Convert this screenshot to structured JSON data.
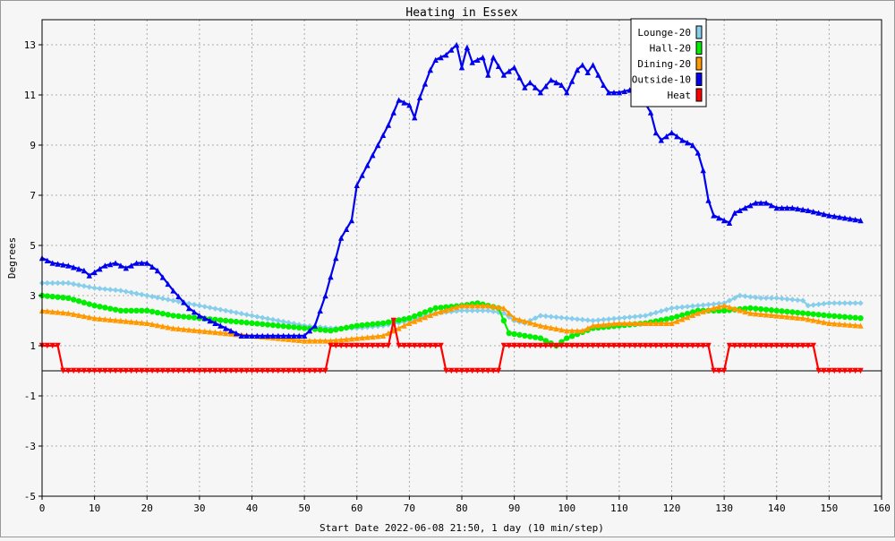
{
  "chart_data": {
    "type": "line",
    "title": "Heating in Essex",
    "xlabel": "Start Date 2022-06-08 21:50, 1 day (10 min/step)",
    "ylabel": "Degrees",
    "xlim": [
      0,
      160
    ],
    "ylim": [
      -5,
      14
    ],
    "x_ticks": [
      0,
      10,
      20,
      30,
      40,
      50,
      60,
      70,
      80,
      90,
      100,
      110,
      120,
      130,
      140,
      150,
      160
    ],
    "y_ticks": [
      -5,
      -3,
      -1,
      1,
      3,
      5,
      7,
      9,
      11,
      13
    ],
    "grid": true,
    "legend_position": "top-right",
    "series": [
      {
        "name": "Lounge-20",
        "color": "#87ceeb",
        "marker": "diamond",
        "points": [
          [
            0,
            3.5
          ],
          [
            5,
            3.5
          ],
          [
            10,
            3.3
          ],
          [
            15,
            3.2
          ],
          [
            20,
            3.0
          ],
          [
            25,
            2.8
          ],
          [
            30,
            2.6
          ],
          [
            35,
            2.4
          ],
          [
            40,
            2.2
          ],
          [
            45,
            2.0
          ],
          [
            50,
            1.8
          ],
          [
            55,
            1.7
          ],
          [
            60,
            1.7
          ],
          [
            65,
            1.8
          ],
          [
            70,
            2.0
          ],
          [
            75,
            2.3
          ],
          [
            80,
            2.4
          ],
          [
            85,
            2.4
          ],
          [
            88,
            2.3
          ],
          [
            90,
            2.0
          ],
          [
            92,
            1.9
          ],
          [
            95,
            2.2
          ],
          [
            100,
            2.1
          ],
          [
            105,
            2.0
          ],
          [
            110,
            2.1
          ],
          [
            115,
            2.2
          ],
          [
            120,
            2.5
          ],
          [
            125,
            2.6
          ],
          [
            130,
            2.7
          ],
          [
            133,
            3.0
          ],
          [
            137,
            2.9
          ],
          [
            140,
            2.9
          ],
          [
            145,
            2.8
          ],
          [
            146,
            2.6
          ],
          [
            150,
            2.7
          ],
          [
            156,
            2.7
          ]
        ]
      },
      {
        "name": "Hall-20",
        "color": "#00ee00",
        "marker": "circle",
        "points": [
          [
            0,
            3.0
          ],
          [
            5,
            2.9
          ],
          [
            10,
            2.6
          ],
          [
            15,
            2.4
          ],
          [
            20,
            2.4
          ],
          [
            25,
            2.2
          ],
          [
            30,
            2.1
          ],
          [
            35,
            2.0
          ],
          [
            40,
            1.9
          ],
          [
            45,
            1.8
          ],
          [
            50,
            1.7
          ],
          [
            55,
            1.6
          ],
          [
            60,
            1.8
          ],
          [
            65,
            1.9
          ],
          [
            70,
            2.1
          ],
          [
            75,
            2.5
          ],
          [
            80,
            2.6
          ],
          [
            83,
            2.7
          ],
          [
            87,
            2.5
          ],
          [
            89,
            1.5
          ],
          [
            92,
            1.4
          ],
          [
            95,
            1.3
          ],
          [
            98,
            1.0
          ],
          [
            100,
            1.3
          ],
          [
            105,
            1.7
          ],
          [
            110,
            1.8
          ],
          [
            115,
            1.9
          ],
          [
            120,
            2.1
          ],
          [
            125,
            2.4
          ],
          [
            130,
            2.4
          ],
          [
            135,
            2.5
          ],
          [
            140,
            2.4
          ],
          [
            145,
            2.3
          ],
          [
            150,
            2.2
          ],
          [
            156,
            2.1
          ]
        ]
      },
      {
        "name": "Dining-20",
        "color": "#ff9900",
        "marker": "triangle-up",
        "points": [
          [
            0,
            2.4
          ],
          [
            5,
            2.3
          ],
          [
            10,
            2.1
          ],
          [
            15,
            2.0
          ],
          [
            20,
            1.9
          ],
          [
            25,
            1.7
          ],
          [
            30,
            1.6
          ],
          [
            35,
            1.5
          ],
          [
            40,
            1.4
          ],
          [
            45,
            1.3
          ],
          [
            50,
            1.2
          ],
          [
            55,
            1.2
          ],
          [
            60,
            1.3
          ],
          [
            65,
            1.4
          ],
          [
            70,
            1.9
          ],
          [
            75,
            2.3
          ],
          [
            80,
            2.6
          ],
          [
            85,
            2.6
          ],
          [
            88,
            2.5
          ],
          [
            90,
            2.1
          ],
          [
            95,
            1.8
          ],
          [
            100,
            1.6
          ],
          [
            103,
            1.6
          ],
          [
            105,
            1.8
          ],
          [
            110,
            1.9
          ],
          [
            120,
            1.9
          ],
          [
            125,
            2.3
          ],
          [
            128,
            2.5
          ],
          [
            130,
            2.6
          ],
          [
            135,
            2.3
          ],
          [
            140,
            2.2
          ],
          [
            145,
            2.1
          ],
          [
            150,
            1.9
          ],
          [
            156,
            1.8
          ]
        ]
      },
      {
        "name": "Outside-10",
        "color": "#0000ee",
        "marker": "triangle-up",
        "points": [
          [
            0,
            4.5
          ],
          [
            2,
            4.3
          ],
          [
            5,
            4.2
          ],
          [
            8,
            4.0
          ],
          [
            9,
            3.8
          ],
          [
            12,
            4.2
          ],
          [
            14,
            4.3
          ],
          [
            16,
            4.1
          ],
          [
            18,
            4.3
          ],
          [
            20,
            4.3
          ],
          [
            22,
            4.0
          ],
          [
            25,
            3.2
          ],
          [
            28,
            2.5
          ],
          [
            30,
            2.2
          ],
          [
            33,
            1.9
          ],
          [
            36,
            1.6
          ],
          [
            38,
            1.4
          ],
          [
            42,
            1.4
          ],
          [
            46,
            1.4
          ],
          [
            50,
            1.4
          ],
          [
            52,
            1.8
          ],
          [
            54,
            3.0
          ],
          [
            56,
            4.5
          ],
          [
            57,
            5.3
          ],
          [
            59,
            6.0
          ],
          [
            60,
            7.4
          ],
          [
            62,
            8.2
          ],
          [
            64,
            9.0
          ],
          [
            66,
            9.8
          ],
          [
            67,
            10.3
          ],
          [
            68,
            10.8
          ],
          [
            70,
            10.6
          ],
          [
            71,
            10.1
          ],
          [
            72,
            10.9
          ],
          [
            74,
            12.0
          ],
          [
            75,
            12.4
          ],
          [
            77,
            12.6
          ],
          [
            78,
            12.8
          ],
          [
            79,
            13.0
          ],
          [
            80,
            12.1
          ],
          [
            81,
            12.9
          ],
          [
            82,
            12.3
          ],
          [
            84,
            12.5
          ],
          [
            85,
            11.8
          ],
          [
            86,
            12.5
          ],
          [
            88,
            11.8
          ],
          [
            90,
            12.1
          ],
          [
            92,
            11.3
          ],
          [
            93,
            11.5
          ],
          [
            95,
            11.1
          ],
          [
            97,
            11.6
          ],
          [
            99,
            11.4
          ],
          [
            100,
            11.1
          ],
          [
            102,
            12.0
          ],
          [
            103,
            12.2
          ],
          [
            104,
            11.9
          ],
          [
            105,
            12.2
          ],
          [
            107,
            11.4
          ],
          [
            108,
            11.1
          ],
          [
            110,
            11.1
          ],
          [
            112,
            11.2
          ],
          [
            114,
            11.0
          ],
          [
            116,
            10.3
          ],
          [
            117,
            9.5
          ],
          [
            118,
            9.2
          ],
          [
            120,
            9.5
          ],
          [
            122,
            9.2
          ],
          [
            124,
            9.0
          ],
          [
            125,
            8.7
          ],
          [
            126,
            8.0
          ],
          [
            127,
            6.8
          ],
          [
            128,
            6.2
          ],
          [
            130,
            6.0
          ],
          [
            131,
            5.9
          ],
          [
            132,
            6.3
          ],
          [
            134,
            6.5
          ],
          [
            136,
            6.7
          ],
          [
            138,
            6.7
          ],
          [
            140,
            6.5
          ],
          [
            143,
            6.5
          ],
          [
            146,
            6.4
          ],
          [
            148,
            6.3
          ],
          [
            150,
            6.2
          ],
          [
            153,
            6.1
          ],
          [
            156,
            6.0
          ]
        ]
      },
      {
        "name": "Heat",
        "color": "#ff0000",
        "marker": "triangle-down",
        "points": [
          [
            0,
            1
          ],
          [
            3,
            1
          ],
          [
            4,
            0
          ],
          [
            54,
            0
          ],
          [
            55,
            1
          ],
          [
            66,
            1
          ],
          [
            67,
            2
          ],
          [
            68,
            1
          ],
          [
            76,
            1
          ],
          [
            77,
            0
          ],
          [
            87,
            0
          ],
          [
            88,
            1
          ],
          [
            127,
            1
          ],
          [
            128,
            0
          ],
          [
            130,
            0
          ],
          [
            131,
            1
          ],
          [
            147,
            1
          ],
          [
            148,
            0
          ],
          [
            156,
            0
          ]
        ]
      }
    ]
  }
}
